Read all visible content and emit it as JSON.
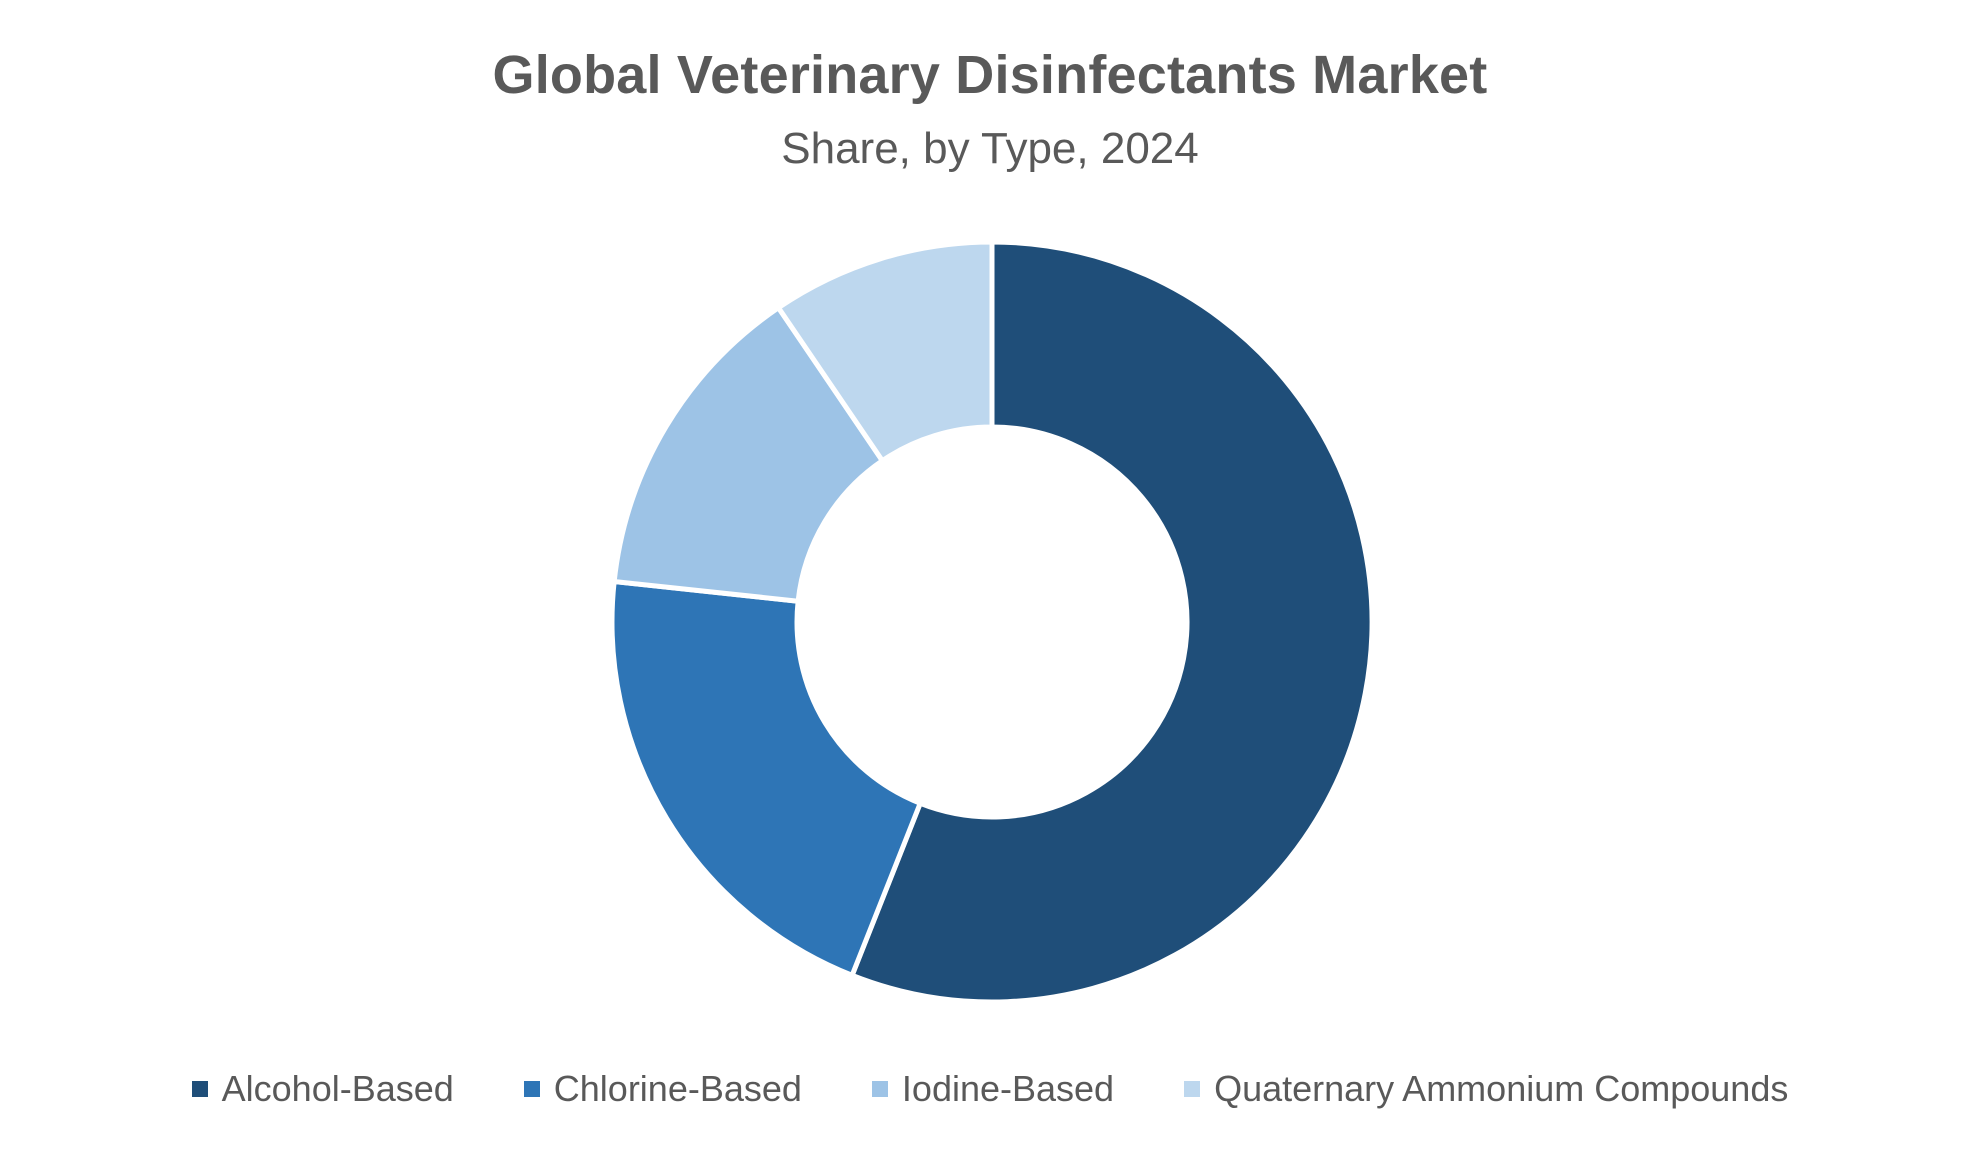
{
  "chart_data": {
    "type": "pie",
    "variant": "donut",
    "title": "Global Veterinary Disinfectants Market",
    "subtitle": "Share, by Type, 2024",
    "legend_position": "bottom",
    "categories": [
      "Alcohol-Based",
      "Chlorine-Based",
      "Iodine-Based",
      "Quaternary Ammonium Compounds"
    ],
    "values": [
      56,
      20.7,
      13.8,
      9.5
    ],
    "colors": [
      "#1F4E79",
      "#2E75B6",
      "#9DC3E6",
      "#BDD7EE"
    ]
  }
}
